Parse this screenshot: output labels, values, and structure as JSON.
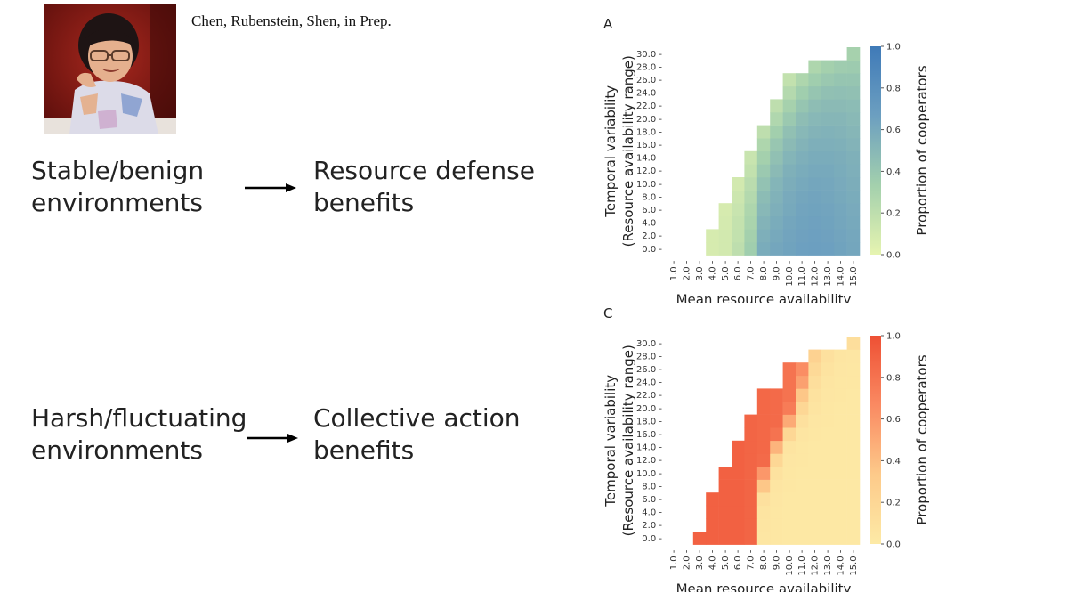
{
  "citation": "Chen, Rubenstein, Shen, in Prep.",
  "rows": [
    {
      "left": [
        "Stable/benign",
        "environments"
      ],
      "right": [
        "Resource defense",
        "benefits"
      ]
    },
    {
      "left": [
        "Harsh/fluctuating",
        "environments"
      ],
      "right": [
        "Collective action",
        "benefits"
      ]
    }
  ],
  "chart_data": [
    {
      "type": "heatmap",
      "panel_label": "A",
      "xlabel": "Mean resource availability",
      "ylabel": [
        "Temporal variability",
        "(Resource availability range)"
      ],
      "colorbar_label": "Proportion of cooperators",
      "colorbar_ticks": [
        "0.0",
        "0.2",
        "0.4",
        "0.6",
        "0.8",
        "1.0"
      ],
      "vlim": [
        0,
        1
      ],
      "colormap": [
        "#e6f4b0",
        "#a3d0ad",
        "#6c9fc0",
        "#3f7ab8"
      ],
      "x_categories": [
        "1.0",
        "2.0",
        "3.0",
        "4.0",
        "5.0",
        "6.0",
        "7.0",
        "8.0",
        "9.0",
        "10.0",
        "11.0",
        "12.0",
        "13.0",
        "14.0",
        "15.0"
      ],
      "y_categories": [
        "0.0",
        "2.0",
        "4.0",
        "6.0",
        "8.0",
        "10.0",
        "12.0",
        "14.0",
        "16.0",
        "18.0",
        "20.0",
        "22.0",
        "24.0",
        "26.0",
        "28.0",
        "30.0"
      ],
      "values": [
        [
          null,
          null,
          null,
          0.08,
          0.1,
          0.2,
          0.35,
          0.58,
          0.62,
          0.64,
          0.66,
          0.67,
          0.66,
          0.64,
          0.62
        ],
        [
          null,
          null,
          null,
          0.08,
          0.1,
          0.18,
          0.33,
          0.56,
          0.6,
          0.63,
          0.65,
          0.66,
          0.65,
          0.63,
          0.61
        ],
        [
          null,
          null,
          null,
          null,
          0.09,
          0.17,
          0.3,
          0.53,
          0.58,
          0.62,
          0.64,
          0.65,
          0.64,
          0.62,
          0.6
        ],
        [
          null,
          null,
          null,
          null,
          0.08,
          0.15,
          0.28,
          0.5,
          0.56,
          0.6,
          0.63,
          0.64,
          0.63,
          0.61,
          0.59
        ],
        [
          null,
          null,
          null,
          null,
          null,
          0.13,
          0.25,
          0.47,
          0.54,
          0.59,
          0.62,
          0.63,
          0.62,
          0.6,
          0.58
        ],
        [
          null,
          null,
          null,
          null,
          null,
          0.1,
          0.22,
          0.43,
          0.52,
          0.57,
          0.6,
          0.62,
          0.61,
          0.59,
          0.57
        ],
        [
          null,
          null,
          null,
          null,
          null,
          null,
          0.18,
          0.38,
          0.48,
          0.55,
          0.58,
          0.6,
          0.6,
          0.58,
          0.56
        ],
        [
          null,
          null,
          null,
          null,
          null,
          null,
          0.15,
          0.33,
          0.44,
          0.52,
          0.56,
          0.58,
          0.58,
          0.57,
          0.55
        ],
        [
          null,
          null,
          null,
          null,
          null,
          null,
          null,
          0.28,
          0.4,
          0.48,
          0.53,
          0.56,
          0.56,
          0.55,
          0.53
        ],
        [
          null,
          null,
          null,
          null,
          null,
          null,
          null,
          0.2,
          0.34,
          0.44,
          0.5,
          0.53,
          0.54,
          0.53,
          0.51
        ],
        [
          null,
          null,
          null,
          null,
          null,
          null,
          null,
          null,
          0.27,
          0.38,
          0.46,
          0.5,
          0.51,
          0.51,
          0.49
        ],
        [
          null,
          null,
          null,
          null,
          null,
          null,
          null,
          null,
          0.2,
          0.32,
          0.41,
          0.46,
          0.48,
          0.48,
          0.47
        ],
        [
          null,
          null,
          null,
          null,
          null,
          null,
          null,
          null,
          null,
          0.25,
          0.35,
          0.41,
          0.44,
          0.45,
          0.44
        ],
        [
          null,
          null,
          null,
          null,
          null,
          null,
          null,
          null,
          null,
          0.18,
          0.28,
          0.35,
          0.39,
          0.41,
          0.41
        ],
        [
          null,
          null,
          null,
          null,
          null,
          null,
          null,
          null,
          null,
          null,
          null,
          0.28,
          0.33,
          0.36,
          0.37
        ],
        [
          null,
          null,
          null,
          null,
          null,
          null,
          null,
          null,
          null,
          null,
          null,
          null,
          null,
          null,
          0.32
        ]
      ]
    },
    {
      "type": "heatmap",
      "panel_label": "C",
      "xlabel": "Mean resource availability",
      "ylabel": [
        "Temporal variability",
        "(Resource availability range)"
      ],
      "colorbar_label": "Proportion of cooperators",
      "colorbar_ticks": [
        "0.0",
        "0.2",
        "0.4",
        "0.6",
        "0.8",
        "1.0"
      ],
      "vlim": [
        0,
        1
      ],
      "colormap": [
        "#fdeaa6",
        "#fdca8a",
        "#fa8a62",
        "#ee5034"
      ],
      "x_categories": [
        "1.0",
        "2.0",
        "3.0",
        "4.0",
        "5.0",
        "6.0",
        "7.0",
        "8.0",
        "9.0",
        "10.0",
        "11.0",
        "12.0",
        "13.0",
        "14.0",
        "15.0"
      ],
      "y_categories": [
        "0.0",
        "2.0",
        "4.0",
        "6.0",
        "8.0",
        "10.0",
        "12.0",
        "14.0",
        "16.0",
        "18.0",
        "20.0",
        "22.0",
        "24.0",
        "26.0",
        "28.0",
        "30.0"
      ],
      "values": [
        [
          null,
          null,
          0.9,
          0.9,
          0.9,
          0.9,
          0.88,
          0.04,
          0.03,
          0.02,
          0.02,
          0.02,
          0.02,
          0.02,
          0.02
        ],
        [
          null,
          null,
          null,
          0.9,
          0.9,
          0.9,
          0.88,
          0.05,
          0.03,
          0.02,
          0.02,
          0.02,
          0.02,
          0.02,
          0.02
        ],
        [
          null,
          null,
          null,
          0.9,
          0.9,
          0.9,
          0.88,
          0.06,
          0.03,
          0.02,
          0.02,
          0.02,
          0.02,
          0.02,
          0.02
        ],
        [
          null,
          null,
          null,
          0.9,
          0.9,
          0.9,
          0.88,
          0.1,
          0.04,
          0.02,
          0.02,
          0.02,
          0.02,
          0.02,
          0.02
        ],
        [
          null,
          null,
          null,
          null,
          0.9,
          0.9,
          0.88,
          0.35,
          0.05,
          0.03,
          0.02,
          0.02,
          0.02,
          0.02,
          0.02
        ],
        [
          null,
          null,
          null,
          null,
          0.9,
          0.9,
          0.88,
          0.6,
          0.08,
          0.03,
          0.02,
          0.02,
          0.02,
          0.02,
          0.02
        ],
        [
          null,
          null,
          null,
          null,
          null,
          0.9,
          0.88,
          0.85,
          0.2,
          0.04,
          0.03,
          0.02,
          0.02,
          0.02,
          0.02
        ],
        [
          null,
          null,
          null,
          null,
          null,
          0.9,
          0.88,
          0.86,
          0.45,
          0.06,
          0.03,
          0.02,
          0.02,
          0.02,
          0.02
        ],
        [
          null,
          null,
          null,
          null,
          null,
          null,
          0.88,
          0.86,
          0.8,
          0.2,
          0.05,
          0.03,
          0.02,
          0.02,
          0.02
        ],
        [
          null,
          null,
          null,
          null,
          null,
          null,
          0.88,
          0.86,
          0.85,
          0.5,
          0.1,
          0.04,
          0.03,
          0.02,
          0.02
        ],
        [
          null,
          null,
          null,
          null,
          null,
          null,
          null,
          0.86,
          0.85,
          0.75,
          0.2,
          0.06,
          0.03,
          0.02,
          0.02
        ],
        [
          null,
          null,
          null,
          null,
          null,
          null,
          null,
          0.86,
          0.85,
          0.8,
          0.35,
          0.08,
          0.04,
          0.03,
          0.02
        ],
        [
          null,
          null,
          null,
          null,
          null,
          null,
          null,
          null,
          null,
          0.8,
          0.55,
          0.12,
          0.05,
          0.03,
          0.03
        ],
        [
          null,
          null,
          null,
          null,
          null,
          null,
          null,
          null,
          null,
          0.8,
          0.65,
          0.18,
          0.07,
          0.04,
          0.03
        ],
        [
          null,
          null,
          null,
          null,
          null,
          null,
          null,
          null,
          null,
          null,
          null,
          0.25,
          0.1,
          0.05,
          0.04
        ],
        [
          null,
          null,
          null,
          null,
          null,
          null,
          null,
          null,
          null,
          null,
          null,
          null,
          null,
          null,
          0.12
        ]
      ]
    }
  ]
}
